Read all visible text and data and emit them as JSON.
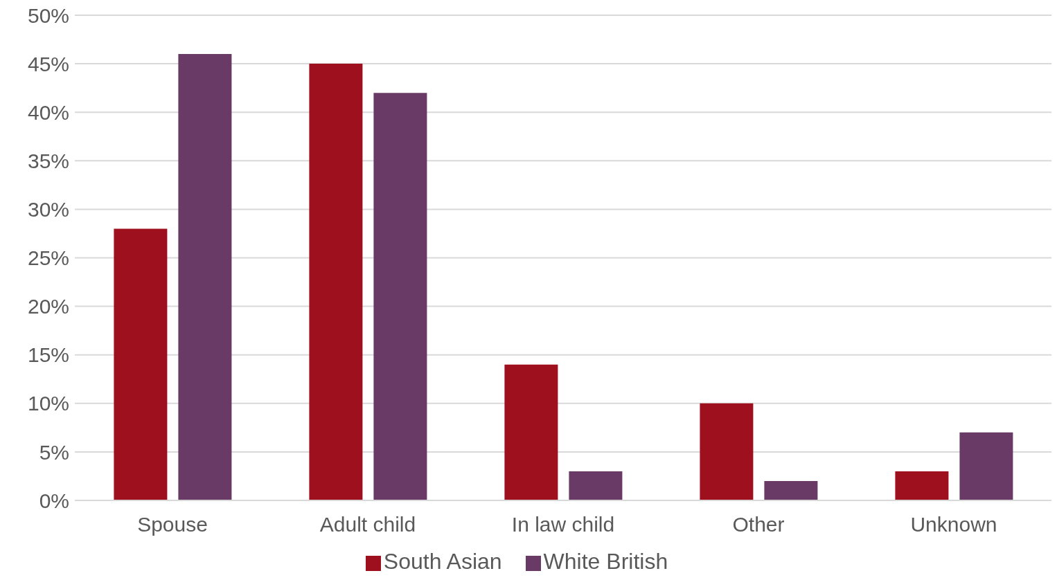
{
  "chart_data": {
    "type": "bar",
    "categories": [
      "Spouse",
      "Adult child",
      "In law child",
      "Other",
      "Unknown"
    ],
    "series": [
      {
        "name": "South Asian",
        "color": "#9e101e",
        "values": [
          28,
          45,
          14,
          10,
          3
        ]
      },
      {
        "name": "White British",
        "color": "#6a3a66",
        "values": [
          46,
          42,
          3,
          2,
          7
        ]
      }
    ],
    "ylim": [
      0,
      50
    ],
    "yticks": [
      {
        "value": 0,
        "label": "0%"
      },
      {
        "value": 5,
        "label": "5%"
      },
      {
        "value": 10,
        "label": "10%"
      },
      {
        "value": 15,
        "label": "15%"
      },
      {
        "value": 20,
        "label": "20%"
      },
      {
        "value": 25,
        "label": "25%"
      },
      {
        "value": 30,
        "label": "30%"
      },
      {
        "value": 35,
        "label": "35%"
      },
      {
        "value": 40,
        "label": "40%"
      },
      {
        "value": 45,
        "label": "45%"
      },
      {
        "value": 50,
        "label": "50%"
      }
    ],
    "grid": "y",
    "legend": "bottom"
  }
}
